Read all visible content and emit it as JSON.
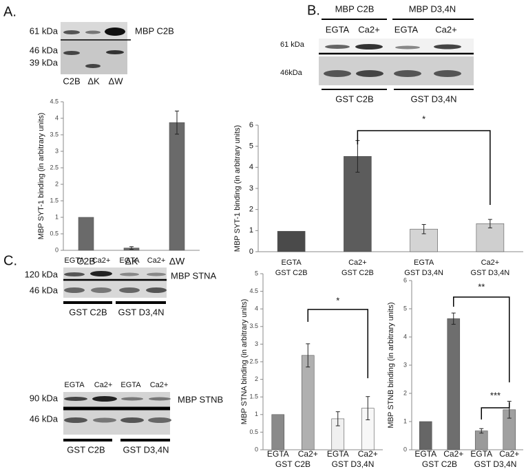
{
  "panels": {
    "a": "A.",
    "b": "B.",
    "c": "C."
  },
  "blot_a": {
    "markers": [
      "61 kDa",
      "46 kDa",
      "39 kDa"
    ],
    "label": "MBP C2B",
    "lanes": [
      "C2B",
      "ΔK",
      "ΔW"
    ]
  },
  "blot_b": {
    "groups": [
      "MBP C2B",
      "MBP D3,4N"
    ],
    "lanes": [
      "EGTA",
      "Ca2+",
      "EGTA",
      "Ca2+"
    ],
    "markers": [
      "61 kDa",
      "46kDa"
    ],
    "bottom_groups": [
      "GST C2B",
      "GST D3,4N"
    ]
  },
  "blot_c1": {
    "lanes": [
      "EGTA",
      "Ca2+",
      "EGTA",
      "Ca2+"
    ],
    "markers": [
      "120 kDa",
      "46 kDa"
    ],
    "label": "MBP STNA",
    "bottom_groups": [
      "GST C2B",
      "GST D3,4N"
    ]
  },
  "blot_c2": {
    "lanes": [
      "EGTA",
      "Ca2+",
      "EGTA",
      "Ca2+"
    ],
    "markers": [
      "90 kDa",
      "46 kDa"
    ],
    "label": "MBP STNB",
    "bottom_groups": [
      "GST C2B",
      "GST D3,4N"
    ]
  },
  "chart_data": [
    {
      "type": "bar",
      "ylabel": "MBP SYT-1 binding (in arbitrary units)",
      "categories": [
        "C2B",
        "ΔK",
        "ΔW"
      ],
      "values": [
        1,
        0.07,
        3.87
      ],
      "errors": [
        null,
        0.04,
        0.35
      ],
      "colors": [
        "#6a6a6a",
        "#6a6a6a",
        "#6a6a6a"
      ],
      "ylim": [
        0,
        4.5
      ],
      "yticks": [
        0,
        0.5,
        1,
        1.5,
        2,
        2.5,
        3,
        3.5,
        4,
        4.5
      ]
    },
    {
      "type": "bar",
      "ylabel": "MBP SYT-1 binding (in arbitrary units)",
      "categories": [
        [
          "EGTA",
          "GST C2B"
        ],
        [
          "Ca2+",
          "GST C2B"
        ],
        [
          "EGTA",
          "GST D3,4N"
        ],
        [
          "Ca2+",
          "GST D3,4N"
        ]
      ],
      "values": [
        0.97,
        4.52,
        1.07,
        1.33
      ],
      "errors": [
        null,
        0.75,
        0.22,
        0.2
      ],
      "colors": [
        "#4a4a4a",
        "#5c5c5c",
        "#d4d4d4",
        "#cfcfcf"
      ],
      "ylim": [
        0,
        6
      ],
      "yticks": [
        0,
        1,
        2,
        3,
        4,
        5,
        6
      ],
      "annotations": [
        "*"
      ]
    },
    {
      "type": "bar",
      "ylabel": "MBP STNA binding (in arbitrary units)",
      "categories": [
        "EGTA",
        "Ca2+",
        "EGTA",
        "Ca2+"
      ],
      "groups": [
        "GST C2B",
        "GST D3,4N"
      ],
      "values": [
        1,
        2.68,
        0.88,
        1.18
      ],
      "errors": [
        null,
        0.33,
        0.2,
        0.33
      ],
      "colors": [
        "#8a8a8a",
        "#b0b0b0",
        "#f0f0f0",
        "#f7f7f7"
      ],
      "ylim": [
        0,
        5
      ],
      "yticks": [
        0,
        0.5,
        1,
        1.5,
        2,
        2.5,
        3,
        3.5,
        4,
        4.5,
        5
      ],
      "annotations": [
        "*"
      ]
    },
    {
      "type": "bar",
      "ylabel": "MBP STNB binding (in arbitrary units)",
      "categories": [
        "EGTA",
        "Ca2+",
        "EGTA",
        "Ca2+"
      ],
      "groups": [
        "GST C2B",
        "GST D3,4N"
      ],
      "values": [
        1,
        4.65,
        0.67,
        1.42
      ],
      "errors": [
        null,
        0.2,
        0.08,
        0.3
      ],
      "colors": [
        "#666666",
        "#6e6e6e",
        "#9a9a9a",
        "#a0a0a0"
      ],
      "ylim": [
        0,
        6
      ],
      "yticks": [
        0,
        1,
        2,
        3,
        4,
        5,
        6
      ],
      "annotations": [
        "**",
        "***"
      ]
    }
  ]
}
